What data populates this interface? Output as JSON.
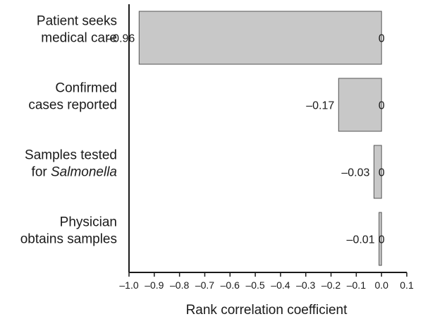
{
  "chart_data": {
    "type": "bar",
    "orientation": "horizontal",
    "categories": [
      {
        "lines": [
          [
            {
              "text": "Patient seeks"
            }
          ],
          [
            {
              "text": "medical care"
            }
          ]
        ]
      },
      {
        "lines": [
          [
            {
              "text": "Confirmed"
            }
          ],
          [
            {
              "text": "cases reported"
            }
          ]
        ]
      },
      {
        "lines": [
          [
            {
              "text": "Samples tested"
            }
          ],
          [
            {
              "text": "for "
            },
            {
              "text": "Salmonella",
              "italic": true
            }
          ]
        ]
      },
      {
        "lines": [
          [
            {
              "text": "Physician"
            }
          ],
          [
            {
              "text": "obtains samples"
            }
          ]
        ]
      }
    ],
    "values": [
      -0.96,
      -0.17,
      -0.03,
      -0.01
    ],
    "value_labels": [
      "–0.96",
      "–0.17",
      "–0.03",
      "–0.01"
    ],
    "zero_labels": [
      "0",
      "0",
      "0",
      "0"
    ],
    "xlabel": "Rank correlation coefficient",
    "xlim": [
      -1.0,
      0.1
    ],
    "xticks": [
      -1.0,
      -0.9,
      -0.8,
      -0.7,
      -0.6,
      -0.5,
      -0.4,
      -0.3,
      -0.2,
      -0.1,
      0.0,
      0.1
    ],
    "xtick_labels": [
      "–1.0",
      "–0.9",
      "–0.8",
      "–0.7",
      "–0.6",
      "–0.5",
      "–0.4",
      "–0.3",
      "–0.2",
      "–0.1",
      "0.0",
      "0.1"
    ],
    "grid": false,
    "colors": {
      "bar_fill": "#c8c8c8",
      "bar_stroke": "#555555",
      "axis": "#1a1a1a"
    }
  }
}
